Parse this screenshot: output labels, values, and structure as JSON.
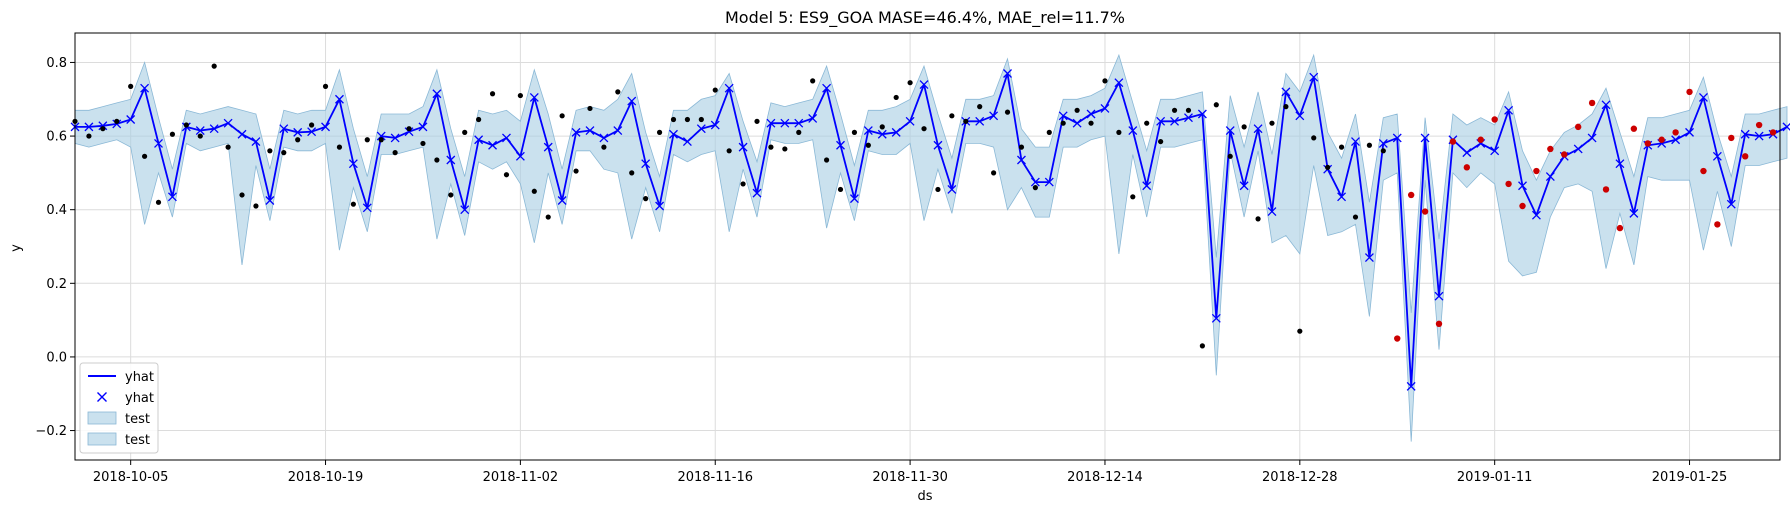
{
  "chart_data": {
    "type": "line",
    "title": "Model 5: ES9_GOA MASE=46.4%, MAE_rel=11.7%",
    "xlabel": "ds",
    "ylabel": "y",
    "x_start": "2018-10-01",
    "xlim_days": [
      0,
      122.5
    ],
    "ylim": [
      -0.28,
      0.88
    ],
    "yticks": [
      -0.2,
      0.0,
      0.2,
      0.4,
      0.6,
      0.8
    ],
    "ytick_labels": [
      "−0.2",
      "0.0",
      "0.2",
      "0.4",
      "0.6",
      "0.8"
    ],
    "xticks": [
      {
        "day": 4,
        "label": "2018-10-05"
      },
      {
        "day": 18,
        "label": "2018-10-19"
      },
      {
        "day": 32,
        "label": "2018-11-02"
      },
      {
        "day": 46,
        "label": "2018-11-16"
      },
      {
        "day": 60,
        "label": "2018-11-30"
      },
      {
        "day": 74,
        "label": "2018-12-14"
      },
      {
        "day": 88,
        "label": "2018-12-28"
      },
      {
        "day": 102,
        "label": "2019-01-11"
      },
      {
        "day": 116,
        "label": "2019-01-25"
      }
    ],
    "grid": true,
    "legend_position": "lower-left",
    "legend": [
      {
        "label": "yhat",
        "kind": "line"
      },
      {
        "label": "yhat",
        "kind": "marker"
      },
      {
        "label": "test",
        "kind": "band"
      },
      {
        "label": "test",
        "kind": "band"
      }
    ],
    "colors": {
      "yhat": "#0000ff",
      "band_fill": "#a6cde2",
      "band_edge": "#8ab8d6",
      "actual": "#000000",
      "test_actual": "#cc0000",
      "grid": "#dcdcdc"
    },
    "test_start_day": 95,
    "day_step": 1,
    "yhat": [
      0.625,
      0.625,
      0.628,
      0.633,
      0.645,
      0.73,
      0.58,
      0.435,
      0.625,
      0.615,
      0.62,
      0.635,
      0.605,
      0.585,
      0.425,
      0.62,
      0.61,
      0.612,
      0.625,
      0.7,
      0.525,
      0.405,
      0.6,
      0.595,
      0.612,
      0.625,
      0.715,
      0.535,
      0.4,
      0.59,
      0.575,
      0.595,
      0.545,
      0.705,
      0.57,
      0.425,
      0.61,
      0.615,
      0.595,
      0.615,
      0.695,
      0.525,
      0.41,
      0.605,
      0.585,
      0.62,
      0.63,
      0.73,
      0.57,
      0.445,
      0.635,
      0.635,
      0.635,
      0.648,
      0.73,
      0.575,
      0.43,
      0.615,
      0.605,
      0.61,
      0.64,
      0.74,
      0.575,
      0.455,
      0.64,
      0.64,
      0.655,
      0.77,
      0.535,
      0.475,
      0.475,
      0.655,
      0.635,
      0.66,
      0.675,
      0.745,
      0.615,
      0.465,
      0.64,
      0.64,
      0.65,
      0.66,
      0.105,
      0.615,
      0.465,
      0.62,
      0.395,
      0.72,
      0.655,
      0.76,
      0.51,
      0.435,
      0.585,
      0.27,
      0.58,
      0.595,
      -0.08,
      0.595,
      0.165,
      0.59,
      0.555,
      0.58,
      0.56,
      0.67,
      0.465,
      0.385,
      0.49,
      0.545,
      0.565,
      0.595,
      0.685,
      0.525,
      0.39,
      0.575,
      0.58,
      0.59,
      0.61,
      0.705,
      0.545,
      0.415,
      0.605,
      0.6,
      0.605,
      0.625
    ],
    "upper": [
      0.67,
      0.67,
      0.68,
      0.69,
      0.7,
      0.8,
      0.65,
      0.51,
      0.67,
      0.66,
      0.67,
      0.68,
      0.67,
      0.66,
      0.51,
      0.67,
      0.66,
      0.67,
      0.67,
      0.78,
      0.62,
      0.49,
      0.66,
      0.66,
      0.66,
      0.68,
      0.78,
      0.62,
      0.49,
      0.67,
      0.66,
      0.67,
      0.64,
      0.78,
      0.66,
      0.51,
      0.67,
      0.68,
      0.67,
      0.7,
      0.77,
      0.61,
      0.49,
      0.67,
      0.67,
      0.7,
      0.71,
      0.77,
      0.64,
      0.53,
      0.69,
      0.68,
      0.69,
      0.7,
      0.79,
      0.66,
      0.52,
      0.67,
      0.67,
      0.68,
      0.7,
      0.79,
      0.66,
      0.54,
      0.7,
      0.7,
      0.71,
      0.81,
      0.62,
      0.57,
      0.57,
      0.7,
      0.7,
      0.71,
      0.73,
      0.82,
      0.69,
      0.56,
      0.7,
      0.7,
      0.71,
      0.72,
      0.27,
      0.71,
      0.57,
      0.72,
      0.55,
      0.77,
      0.72,
      0.82,
      0.61,
      0.54,
      0.66,
      0.42,
      0.65,
      0.66,
      0.12,
      0.65,
      0.32,
      0.66,
      0.63,
      0.65,
      0.63,
      0.72,
      0.56,
      0.48,
      0.56,
      0.61,
      0.63,
      0.66,
      0.73,
      0.61,
      0.49,
      0.65,
      0.65,
      0.66,
      0.67,
      0.76,
      0.61,
      0.49,
      0.66,
      0.66,
      0.67,
      0.68
    ],
    "lower": [
      0.58,
      0.57,
      0.58,
      0.59,
      0.57,
      0.36,
      0.5,
      0.38,
      0.58,
      0.56,
      0.57,
      0.58,
      0.25,
      0.52,
      0.37,
      0.57,
      0.56,
      0.56,
      0.58,
      0.29,
      0.46,
      0.34,
      0.55,
      0.55,
      0.56,
      0.57,
      0.32,
      0.47,
      0.33,
      0.53,
      0.51,
      0.53,
      0.47,
      0.31,
      0.5,
      0.36,
      0.56,
      0.56,
      0.51,
      0.5,
      0.32,
      0.46,
      0.34,
      0.55,
      0.53,
      0.55,
      0.56,
      0.34,
      0.51,
      0.38,
      0.59,
      0.58,
      0.58,
      0.59,
      0.35,
      0.5,
      0.37,
      0.56,
      0.55,
      0.55,
      0.58,
      0.37,
      0.51,
      0.39,
      0.58,
      0.58,
      0.57,
      0.4,
      0.46,
      0.38,
      0.38,
      0.57,
      0.57,
      0.59,
      0.6,
      0.28,
      0.55,
      0.38,
      0.57,
      0.57,
      0.58,
      0.59,
      -0.05,
      0.56,
      0.38,
      0.56,
      0.31,
      0.33,
      0.28,
      0.52,
      0.33,
      0.34,
      0.36,
      0.11,
      0.48,
      0.5,
      -0.23,
      0.48,
      0.02,
      0.5,
      0.46,
      0.5,
      0.47,
      0.26,
      0.22,
      0.23,
      0.38,
      0.46,
      0.47,
      0.45,
      0.24,
      0.39,
      0.25,
      0.49,
      0.48,
      0.48,
      0.48,
      0.29,
      0.45,
      0.3,
      0.52,
      0.52,
      0.53,
      0.54
    ],
    "actuals": [
      [
        0,
        0.64
      ],
      [
        1,
        0.6
      ],
      [
        2,
        0.62
      ],
      [
        3,
        0.64
      ],
      [
        4,
        0.735
      ],
      [
        5,
        0.545
      ],
      [
        6,
        0.42
      ],
      [
        7,
        0.605
      ],
      [
        8,
        0.63
      ],
      [
        9,
        0.6
      ],
      [
        10,
        0.79
      ],
      [
        11,
        0.57
      ],
      [
        12,
        0.44
      ],
      [
        13,
        0.41
      ],
      [
        14,
        0.56
      ],
      [
        15,
        0.555
      ],
      [
        16,
        0.59
      ],
      [
        17,
        0.63
      ],
      [
        18,
        0.735
      ],
      [
        19,
        0.57
      ],
      [
        20,
        0.415
      ],
      [
        21,
        0.59
      ],
      [
        22,
        0.59
      ],
      [
        23,
        0.555
      ],
      [
        24,
        0.62
      ],
      [
        25,
        0.58
      ],
      [
        26,
        0.535
      ],
      [
        27,
        0.44
      ],
      [
        28,
        0.61
      ],
      [
        29,
        0.645
      ],
      [
        30,
        0.715
      ],
      [
        31,
        0.495
      ],
      [
        32,
        0.71
      ],
      [
        33,
        0.45
      ],
      [
        34,
        0.38
      ],
      [
        35,
        0.655
      ],
      [
        36,
        0.505
      ],
      [
        37,
        0.675
      ],
      [
        38,
        0.57
      ],
      [
        39,
        0.72
      ],
      [
        40,
        0.5
      ],
      [
        41,
        0.43
      ],
      [
        42,
        0.61
      ],
      [
        43,
        0.645
      ],
      [
        44,
        0.645
      ],
      [
        45,
        0.645
      ],
      [
        46,
        0.725
      ],
      [
        47,
        0.56
      ],
      [
        48,
        0.47
      ],
      [
        49,
        0.64
      ],
      [
        50,
        0.57
      ],
      [
        51,
        0.565
      ],
      [
        52,
        0.61
      ],
      [
        53,
        0.75
      ],
      [
        54,
        0.535
      ],
      [
        55,
        0.455
      ],
      [
        56,
        0.61
      ],
      [
        57,
        0.575
      ],
      [
        58,
        0.625
      ],
      [
        59,
        0.705
      ],
      [
        60,
        0.745
      ],
      [
        61,
        0.62
      ],
      [
        62,
        0.455
      ],
      [
        63,
        0.655
      ],
      [
        64,
        0.64
      ],
      [
        65,
        0.68
      ],
      [
        66,
        0.5
      ],
      [
        67,
        0.665
      ],
      [
        68,
        0.57
      ],
      [
        69,
        0.46
      ],
      [
        70,
        0.61
      ],
      [
        71,
        0.635
      ],
      [
        72,
        0.67
      ],
      [
        73,
        0.635
      ],
      [
        74,
        0.75
      ],
      [
        75,
        0.61
      ],
      [
        76,
        0.435
      ],
      [
        77,
        0.635
      ],
      [
        78,
        0.585
      ],
      [
        79,
        0.67
      ],
      [
        80,
        0.67
      ],
      [
        81,
        0.03
      ],
      [
        82,
        0.685
      ],
      [
        83,
        0.545
      ],
      [
        84,
        0.625
      ],
      [
        85,
        0.375
      ],
      [
        86,
        0.635
      ],
      [
        87,
        0.68
      ],
      [
        88,
        0.07
      ],
      [
        89,
        0.595
      ],
      [
        90,
        0.515
      ],
      [
        91,
        0.57
      ],
      [
        92,
        0.38
      ],
      [
        93,
        0.575
      ],
      [
        94,
        0.56
      ],
      [
        95,
        0.05
      ],
      [
        96,
        0.44
      ],
      [
        97,
        0.395
      ],
      [
        98,
        0.09
      ],
      [
        99,
        0.585
      ],
      [
        100,
        0.515
      ],
      [
        101,
        0.59
      ],
      [
        102,
        0.645
      ],
      [
        103,
        0.47
      ],
      [
        104,
        0.41
      ],
      [
        105,
        0.505
      ],
      [
        106,
        0.565
      ],
      [
        107,
        0.55
      ],
      [
        108,
        0.625
      ],
      [
        109,
        0.69
      ],
      [
        110,
        0.455
      ],
      [
        111,
        0.35
      ],
      [
        112,
        0.62
      ],
      [
        113,
        0.58
      ],
      [
        114,
        0.59
      ],
      [
        115,
        0.61
      ],
      [
        116,
        0.72
      ],
      [
        117,
        0.505
      ],
      [
        118,
        0.36
      ],
      [
        119,
        0.595
      ],
      [
        120,
        0.545
      ],
      [
        121,
        0.63
      ],
      [
        122,
        0.61
      ]
    ]
  }
}
